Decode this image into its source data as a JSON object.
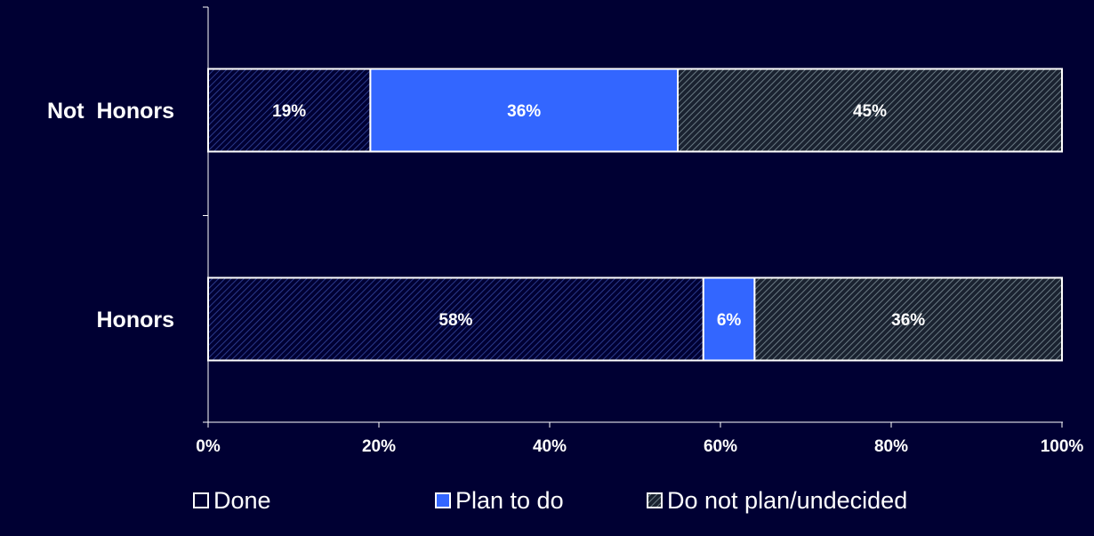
{
  "chart_data": {
    "type": "bar",
    "orientation": "horizontal",
    "stacked": "percent",
    "categories": [
      "Not  Honors",
      "Honors"
    ],
    "series": [
      {
        "name": "Done",
        "values": [
          19,
          58
        ],
        "labels": [
          "19%",
          "58%"
        ],
        "color": "#000033",
        "pattern": "diagonal-hatch-blue"
      },
      {
        "name": "Plan to do",
        "values": [
          36,
          6
        ],
        "labels": [
          "36%",
          "6%"
        ],
        "color": "#3366ff",
        "pattern": "solid"
      },
      {
        "name": "Do not plan/undecided",
        "values": [
          45,
          36
        ],
        "labels": [
          "45%",
          "36%"
        ],
        "color": "#2b3a44",
        "pattern": "diagonal-hatch-grey"
      }
    ],
    "x_ticks": [
      "0%",
      "20%",
      "40%",
      "60%",
      "80%",
      "100%"
    ],
    "xlim": [
      0,
      100
    ],
    "grid": false,
    "legend": "bottom",
    "colors": {
      "background": "#000033",
      "axis": "#ffffff",
      "bar_border": "#ffffff"
    }
  }
}
